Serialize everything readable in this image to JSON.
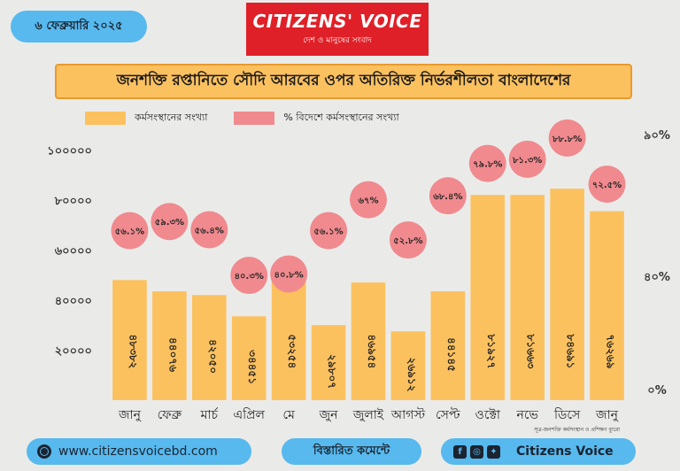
{
  "header": {
    "date": "৬ ফেব্রুয়ারি ২০২৫",
    "logo_brand": "CITIZENS' VOICE",
    "logo_tagline": "দেশ ও মানুষের সংবাদ"
  },
  "chart_data": {
    "type": "bar",
    "title": "জনশক্তি রপ্তানিতে সৌদি আরবের ওপর অতিরিক্ত নির্ভরশীলতা বাংলাদেশের",
    "categories": [
      "জানু",
      "ফেব্রু",
      "মার্চ",
      "এপ্রিল",
      "মে",
      "জুন",
      "জুলাই",
      "আগস্ট",
      "সেপ্ট",
      "ওক্টো",
      "নভে",
      "ডিসে",
      "জানু"
    ],
    "series": [
      {
        "name": "কর্মসংস্থানের সংখ্যা",
        "color": "#fcc15f",
        "values": [
          48000,
          43500,
          42000,
          33500,
          53000,
          30000,
          47000,
          27500,
          43500,
          82000,
          82000,
          84500,
          75500
        ],
        "labels": [
          "৪৮৩৮২",
          "৪৪০৭৬",
          "৪২০৫০",
          "৩৪৪৫১",
          "৫৩২৫৪",
          "২৯৮০৭",
          "৪৬৯৫৪",
          "২৬৯১২",
          "৪৪১৪৫",
          "৮১৯২৭",
          "৮১৬৬৩",
          "৮৪৬৯১",
          "৭৬২৬৯"
        ],
        "axis": "left"
      },
      {
        "name": "% বিদেশে কর্মসংস্থানের সংখ্যা",
        "color": "#f08a8e",
        "values": [
          56.1,
          59.3,
          56.4,
          40.3,
          40.8,
          56.1,
          67,
          52.8,
          68.4,
          79.8,
          81.3,
          88.8,
          72.5
        ],
        "labels": [
          "৫৬.১%",
          "৫৯.৩%",
          "৫৬.৪%",
          "৪০.৩%",
          "৪০.৮%",
          "৫৬.১%",
          "৬৭%",
          "৫২.৮%",
          "৬৮.৪%",
          "৭৯.৮%",
          "৮১.৩%",
          "৮৮.৮%",
          "৭২.৫%"
        ],
        "axis": "right"
      }
    ],
    "ylim": [
      0,
      110000
    ],
    "y_ticks": [
      20000,
      40000,
      60000,
      80000,
      100000
    ],
    "y_tick_labels": [
      "২০০০০",
      "৪০০০০",
      "৬০০০০",
      "৮০০০০",
      "১০০০০০"
    ],
    "y2lim": [
      0,
      90
    ],
    "y2_ticks": [
      0,
      40,
      90
    ],
    "y2_tick_labels": [
      "০%",
      "৪০%",
      "৯০%"
    ],
    "source": "সূত্র-জনশক্তি কর্মসংস্থান ও প্রশিক্ষণ ব্যুরো",
    "grid": false,
    "legend": "top-left"
  },
  "footer": {
    "website": "www.citizensvoicebd.com",
    "comment": "বিস্তারিত কমেন্টে",
    "social_name": "Citizens Voice",
    "social_icons": [
      "facebook-icon",
      "instagram-icon",
      "twitter-icon"
    ]
  }
}
